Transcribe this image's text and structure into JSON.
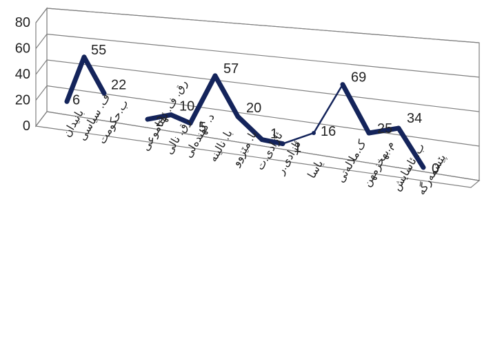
{
  "chart_data": {
    "type": "line",
    "title": "",
    "xlabel": "",
    "ylabel": "",
    "ylim": [
      0,
      80
    ],
    "yticks": [
      0,
      20,
      40,
      60,
      80
    ],
    "grid": true,
    "legend": "none",
    "series": [
      {
        "color": "#14245b",
        "segments": [
          {
            "categories": [
              "بانیدان",
              "ف. سیاسی",
              "ب.حکومت"
            ],
            "values": [
              6,
              55,
              22
            ]
          },
          {
            "categories": [
              "رق. ف. ئهتاموعی",
              "رق. نالی",
              "د. گهنده‌لی",
              "با. نالینه",
              "با. مێزوو",
              "ئازادی.ت",
              "ئازادی.ر",
              "یاسا",
              "ک.ملاله‌تی",
              "م.بهخزمهن",
              "ب. ئاسایش",
              "پێشمەرگە"
            ],
            "values": [
              2,
              10,
              5,
              57,
              20,
              1,
              1,
              16,
              69,
              25,
              34,
              0
            ]
          }
        ]
      }
    ],
    "data_labels": [
      "6",
      "55",
      "22",
      "2",
      "10",
      "5",
      "57",
      "20",
      "1",
      "1",
      "16",
      "69",
      "25",
      "34",
      "0"
    ]
  }
}
